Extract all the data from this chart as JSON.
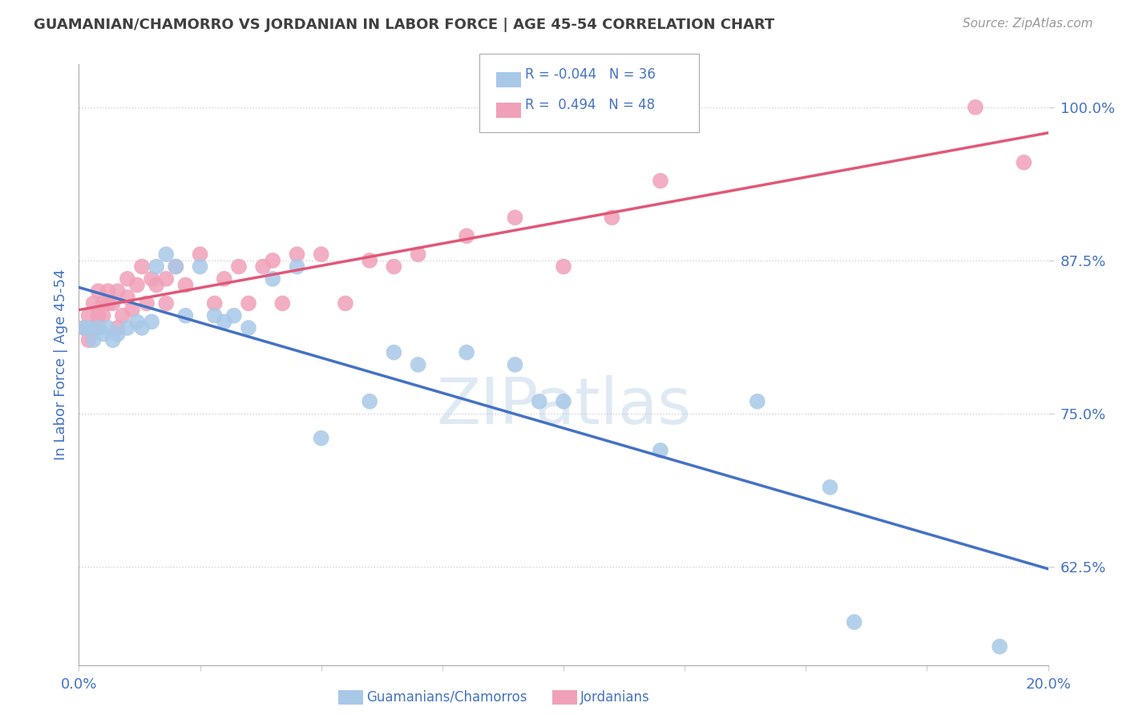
{
  "title": "GUAMANIAN/CHAMORRO VS JORDANIAN IN LABOR FORCE | AGE 45-54 CORRELATION CHART",
  "source": "Source: ZipAtlas.com",
  "ylabel": "In Labor Force | Age 45-54",
  "blue_label": "Guamanians/Chamorros",
  "pink_label": "Jordanians",
  "blue_R": -0.044,
  "blue_N": 36,
  "pink_R": 0.494,
  "pink_N": 48,
  "xlim": [
    0.0,
    0.2
  ],
  "ylim": [
    0.545,
    1.035
  ],
  "yticks": [
    0.625,
    0.75,
    0.875,
    1.0
  ],
  "ytick_labels": [
    "62.5%",
    "75.0%",
    "87.5%",
    "100.0%"
  ],
  "xticks": [
    0.0,
    0.025,
    0.05,
    0.075,
    0.1,
    0.125,
    0.15,
    0.175,
    0.2
  ],
  "xtick_labels": [
    "0.0%",
    "",
    "",
    "",
    "",
    "",
    "",
    "",
    "20.0%"
  ],
  "blue_color": "#a8c8e8",
  "pink_color": "#f0a0b8",
  "blue_line_color": "#4472c4",
  "pink_line_color": "#e05878",
  "background_color": "#ffffff",
  "grid_color": "#d0d0d0",
  "title_color": "#404040",
  "axis_label_color": "#4472c4",
  "watermark": "ZIPatlas",
  "blue_x": [
    0.001,
    0.002,
    0.003,
    0.004,
    0.005,
    0.006,
    0.007,
    0.008,
    0.01,
    0.012,
    0.013,
    0.015,
    0.016,
    0.018,
    0.02,
    0.022,
    0.025,
    0.028,
    0.03,
    0.032,
    0.035,
    0.04,
    0.045,
    0.05,
    0.06,
    0.065,
    0.07,
    0.08,
    0.09,
    0.095,
    0.1,
    0.12,
    0.14,
    0.155,
    0.16,
    0.19
  ],
  "blue_y": [
    0.82,
    0.82,
    0.81,
    0.82,
    0.815,
    0.82,
    0.81,
    0.815,
    0.82,
    0.825,
    0.82,
    0.825,
    0.87,
    0.88,
    0.87,
    0.83,
    0.87,
    0.83,
    0.825,
    0.83,
    0.82,
    0.86,
    0.87,
    0.73,
    0.76,
    0.8,
    0.79,
    0.8,
    0.79,
    0.76,
    0.76,
    0.72,
    0.76,
    0.69,
    0.58,
    0.56
  ],
  "pink_x": [
    0.001,
    0.002,
    0.002,
    0.003,
    0.003,
    0.004,
    0.004,
    0.005,
    0.005,
    0.006,
    0.006,
    0.007,
    0.008,
    0.008,
    0.009,
    0.01,
    0.01,
    0.011,
    0.012,
    0.013,
    0.014,
    0.015,
    0.016,
    0.018,
    0.018,
    0.02,
    0.022,
    0.025,
    0.028,
    0.03,
    0.033,
    0.035,
    0.038,
    0.04,
    0.042,
    0.045,
    0.05,
    0.055,
    0.06,
    0.065,
    0.07,
    0.08,
    0.09,
    0.1,
    0.11,
    0.12,
    0.185,
    0.195
  ],
  "pink_y": [
    0.82,
    0.81,
    0.83,
    0.84,
    0.82,
    0.83,
    0.85,
    0.84,
    0.83,
    0.85,
    0.84,
    0.84,
    0.85,
    0.82,
    0.83,
    0.845,
    0.86,
    0.835,
    0.855,
    0.87,
    0.84,
    0.86,
    0.855,
    0.86,
    0.84,
    0.87,
    0.855,
    0.88,
    0.84,
    0.86,
    0.87,
    0.84,
    0.87,
    0.875,
    0.84,
    0.88,
    0.88,
    0.84,
    0.875,
    0.87,
    0.88,
    0.895,
    0.91,
    0.87,
    0.91,
    0.94,
    1.0,
    0.955
  ]
}
